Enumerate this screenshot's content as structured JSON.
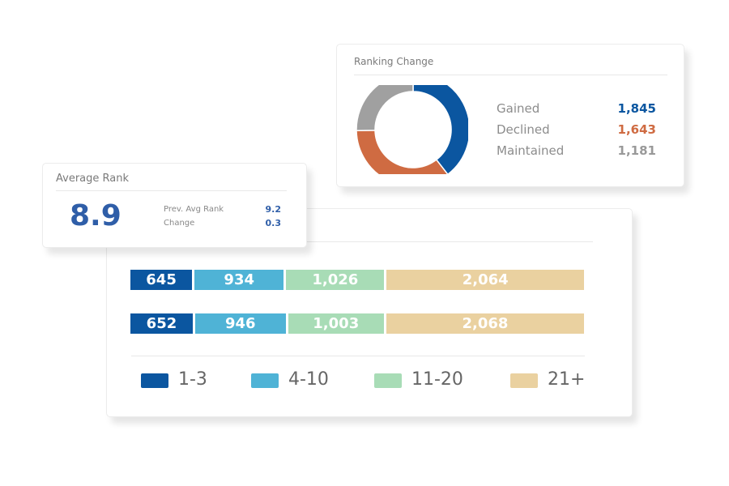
{
  "ranking_change": {
    "title": "Ranking Change",
    "items": [
      {
        "label": "Gained",
        "value": "1,845",
        "color": "#0b56a0"
      },
      {
        "label": "Declined",
        "value": "1,643",
        "color": "#cf6b42"
      },
      {
        "label": "Maintained",
        "value": "1,181",
        "color": "#999999"
      }
    ]
  },
  "average_rank": {
    "title": "Average Rank",
    "value": "8.9",
    "prev_label": "Prev. Avg Rank",
    "prev_value": "9.2",
    "change_label": "Change",
    "change_value": "0.3"
  },
  "chart_data": [
    {
      "type": "pie",
      "title": "Ranking Change",
      "categories": [
        "Gained",
        "Declined",
        "Maintained"
      ],
      "values": [
        1845,
        1643,
        1181
      ],
      "colors": [
        "#0b56a0",
        "#cf6b42",
        "#a0a0a0"
      ],
      "donut": true
    },
    {
      "type": "bar",
      "stacked": true,
      "orientation": "horizontal",
      "categories": [
        "1-3",
        "4-10",
        "11-20",
        "21+"
      ],
      "colors": [
        "#0b56a0",
        "#4fb3d6",
        "#a8dcb6",
        "#ead1a0"
      ],
      "rows": [
        {
          "values": [
            645,
            934,
            1026,
            2064
          ],
          "labels": [
            "645",
            "934",
            "1,026",
            "2,064"
          ]
        },
        {
          "values": [
            652,
            946,
            1003,
            2068
          ],
          "labels": [
            "652",
            "946",
            "1,003",
            "2,068"
          ]
        }
      ],
      "legend": [
        "1-3",
        "4-10",
        "11-20",
        "21+"
      ],
      "legend_position": "bottom"
    }
  ]
}
